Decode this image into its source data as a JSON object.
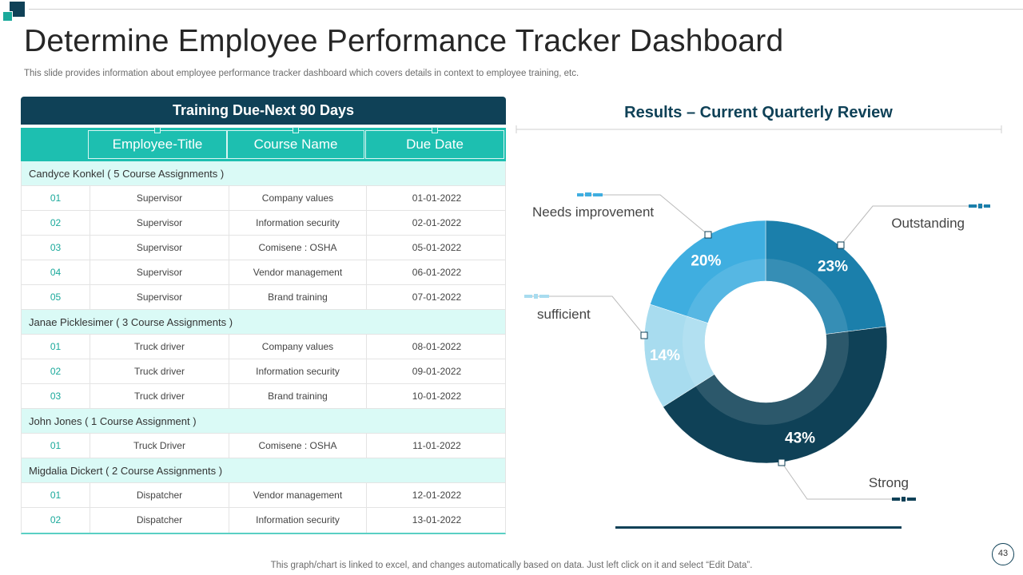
{
  "slide": {
    "title": "Determine Employee Performance Tracker Dashboard",
    "subtitle": "This slide provides information about employee performance tracker dashboard which covers details in context to employee training, etc.",
    "footer": "This graph/chart is linked to excel,  and changes automatically based on data. Just left click on it and select “Edit Data”.",
    "page_number": "43"
  },
  "table": {
    "title": "Training Due-Next 90 Days",
    "columns": [
      "Employee-Title",
      "Course Name",
      "Due Date"
    ],
    "groups": [
      {
        "label": "Candyce Konkel ( 5 Course Assignments )",
        "rows": [
          {
            "no": "01",
            "title": "Supervisor",
            "course": "Company values",
            "due": "01-01-2022"
          },
          {
            "no": "02",
            "title": "Supervisor",
            "course": "Information security",
            "due": "02-01-2022"
          },
          {
            "no": "03",
            "title": "Supervisor",
            "course": "Comisene : OSHA",
            "due": "05-01-2022"
          },
          {
            "no": "04",
            "title": "Supervisor",
            "course": "Vendor management",
            "due": "06-01-2022"
          },
          {
            "no": "05",
            "title": "Supervisor",
            "course": "Brand training",
            "due": "07-01-2022"
          }
        ]
      },
      {
        "label": "Janae Picklesimer ( 3 Course Assignments )",
        "rows": [
          {
            "no": "01",
            "title": "Truck driver",
            "course": "Company values",
            "due": "08-01-2022"
          },
          {
            "no": "02",
            "title": "Truck driver",
            "course": "Information security",
            "due": "09-01-2022"
          },
          {
            "no": "03",
            "title": "Truck driver",
            "course": "Brand training",
            "due": "10-01-2022"
          }
        ]
      },
      {
        "label": "John Jones ( 1 Course Assignment )",
        "rows": [
          {
            "no": "01",
            "title": "Truck Driver",
            "course": "Comisene : OSHA",
            "due": "11-01-2022"
          }
        ]
      },
      {
        "label": "Migdalia Dickert ( 2 Course Assignments )",
        "rows": [
          {
            "no": "01",
            "title": "Dispatcher",
            "course": "Vendor management",
            "due": "12-01-2022"
          },
          {
            "no": "02",
            "title": "Dispatcher",
            "course": "Information security",
            "due": "13-01-2022"
          }
        ]
      }
    ]
  },
  "chart_data": {
    "type": "pie",
    "subtype": "donut",
    "title": "Results – Current Quarterly Review",
    "categories": [
      "Outstanding",
      "Strong",
      "sufficient",
      "Needs improvement"
    ],
    "values": [
      23,
      43,
      14,
      20
    ],
    "labels": [
      "23%",
      "43%",
      "14%",
      "20%"
    ],
    "colors": [
      "#1b7fab",
      "#0f4157",
      "#a8dcef",
      "#3faee0"
    ]
  }
}
